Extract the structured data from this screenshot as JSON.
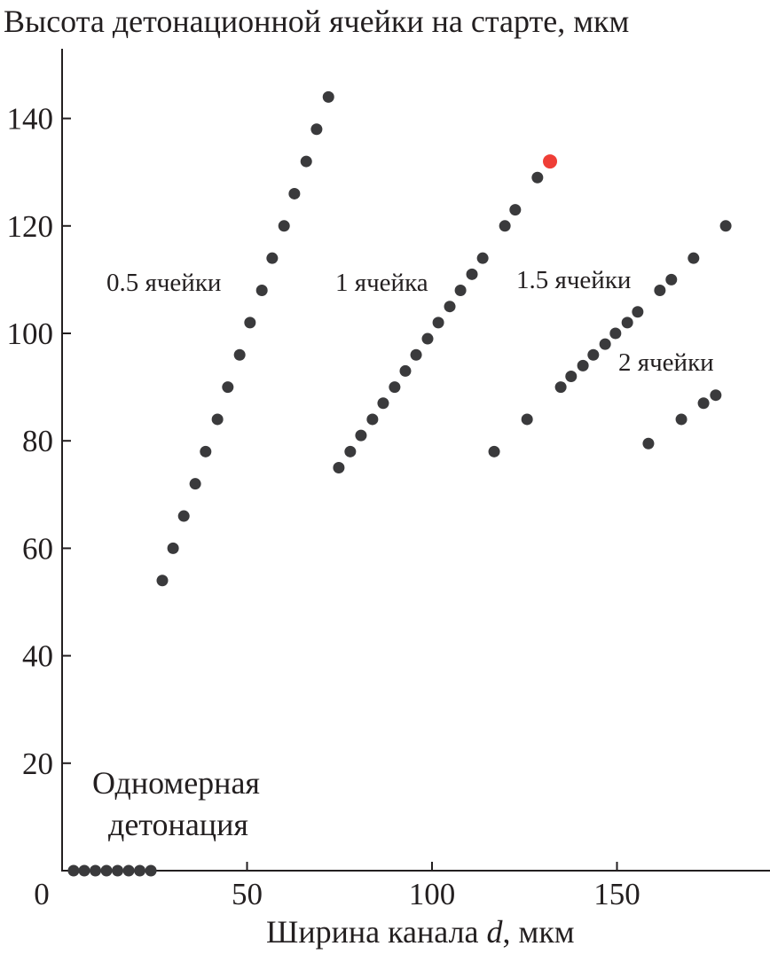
{
  "chart_data": {
    "type": "scatter",
    "title": "",
    "ylabel": "Высота детонационной ячейки на старте, мкм",
    "xlabel_prefix": "Ширина канала ",
    "xlabel_var": "d",
    "xlabel_suffix": ", мкм",
    "xlim": [
      0,
      190
    ],
    "ylim": [
      0,
      152
    ],
    "xticks": [
      0,
      50,
      100,
      150
    ],
    "yticks": [
      20,
      40,
      60,
      80,
      100,
      120,
      140
    ],
    "grid": false,
    "colors": {
      "point": "#3a3a3c",
      "highlight": "#ef3e36",
      "axis": "#231f20"
    },
    "annotations": {
      "s05": "0.5 ячейки",
      "s1": "1 ячейка",
      "s15": "1.5 ячейки",
      "s2": "2 ячейки",
      "one_d_line1": "Одномерная",
      "one_d_line2": "детонация"
    },
    "series": [
      {
        "name": "0.5 ячейки",
        "x": [
          27.1,
          30,
          32.9,
          36,
          38.8,
          42,
          44.8,
          48,
          50.8,
          54,
          56.8,
          60,
          62.8,
          66,
          68.8,
          72
        ],
        "y": [
          54,
          60,
          66,
          72,
          78,
          84,
          90,
          96,
          102,
          108,
          114,
          120,
          126,
          132,
          138,
          144
        ]
      },
      {
        "name": "1 ячейка",
        "x": [
          74.8,
          77.9,
          80.8,
          83.9,
          86.8,
          89.9,
          92.8,
          95.7,
          98.8,
          101.7,
          104.8,
          107.7,
          110.8,
          113.7,
          119.7,
          122.5,
          128.5
        ],
        "y": [
          75,
          78,
          81,
          84,
          87,
          90,
          93,
          96,
          99,
          102,
          105,
          108,
          111,
          114,
          120,
          123,
          129
        ]
      },
      {
        "name": "1 ячейка (выделено)",
        "highlight": true,
        "x": [
          131.9
        ],
        "y": [
          132
        ]
      },
      {
        "name": "1.5 ячейки",
        "x": [
          116.8,
          125.7,
          134.8,
          137.6,
          140.8,
          143.6,
          146.8,
          149.6,
          152.8,
          155.6,
          161.6,
          164.7,
          170.7,
          179.4
        ],
        "y": [
          78,
          84,
          90,
          92,
          94,
          96,
          98,
          100,
          102,
          104,
          108,
          110,
          114,
          120
        ]
      },
      {
        "name": "2 ячейки",
        "x": [
          158.5,
          167.4,
          173.4,
          176.7
        ],
        "y": [
          79.5,
          84,
          87,
          88.5
        ]
      },
      {
        "name": "Одномерная детонация",
        "x": [
          3.1,
          6,
          9,
          12,
          15,
          18,
          21,
          24
        ],
        "y": [
          0,
          0,
          0,
          0,
          0,
          0,
          0,
          0
        ]
      }
    ]
  }
}
